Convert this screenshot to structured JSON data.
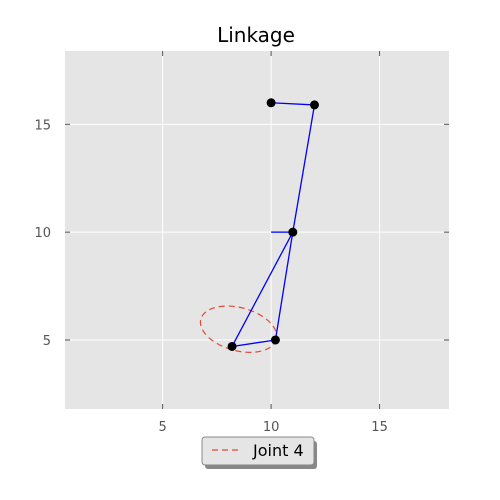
{
  "chart_data": {
    "type": "line",
    "title": "Linkage",
    "xlabel": "",
    "ylabel": "",
    "xlim": [
      0.5,
      18.2
    ],
    "ylim": [
      1.8,
      18.4
    ],
    "xticks": [
      5,
      10,
      15
    ],
    "yticks": [
      5,
      10,
      15
    ],
    "grid": true,
    "background": "#e5e5e5",
    "gridColor": "#ffffff",
    "linkColor": "#0000ff",
    "jointColor": "#000000",
    "legend": {
      "placement": "bottom-center",
      "entries": [
        {
          "label": "Joint 4",
          "color": "#e24a33",
          "style": "dashed"
        }
      ]
    },
    "joints": [
      {
        "x": 10.0,
        "y": 16.0
      },
      {
        "x": 12.0,
        "y": 15.9
      },
      {
        "x": 11.0,
        "y": 10.0
      },
      {
        "x": 8.2,
        "y": 4.7
      },
      {
        "x": 10.2,
        "y": 5.0
      }
    ],
    "links": [
      {
        "from": [
          10.0,
          16.0
        ],
        "to": [
          12.0,
          15.9
        ]
      },
      {
        "from": [
          12.0,
          15.9
        ],
        "to": [
          11.0,
          10.0
        ]
      },
      {
        "from": [
          10.0,
          10.0
        ],
        "to": [
          11.0,
          10.0
        ]
      },
      {
        "from": [
          11.0,
          10.0
        ],
        "to": [
          8.2,
          4.7
        ]
      },
      {
        "from": [
          11.0,
          10.0
        ],
        "to": [
          10.2,
          5.0
        ]
      },
      {
        "from": [
          8.2,
          4.7
        ],
        "to": [
          10.2,
          5.0
        ]
      }
    ],
    "joint4_path": {
      "name": "Joint 4",
      "center": [
        8.5,
        5.5
      ],
      "rx": 1.8,
      "ry": 1.0
    }
  }
}
